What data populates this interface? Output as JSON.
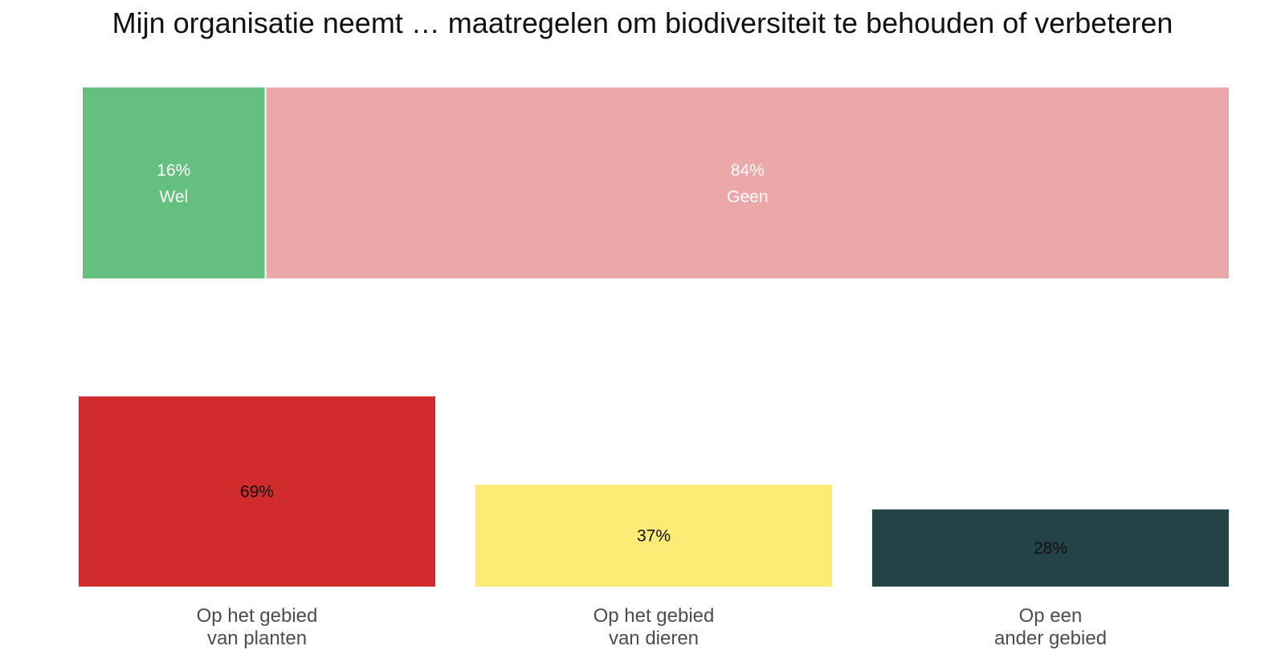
{
  "title": "Mijn organisatie neemt … maatregelen om biodiversiteit te behouden of verbeteren",
  "chart_data": [
    {
      "type": "bar",
      "orientation": "horizontal-stacked",
      "title": "",
      "categories": [
        "Wel",
        "Geen"
      ],
      "values": [
        16,
        84
      ],
      "value_labels": [
        "16%",
        "84%"
      ],
      "colors": [
        "#65bf7f",
        "#eca7a9"
      ],
      "label_color": "#ffffff",
      "xlim": [
        0,
        100
      ]
    },
    {
      "type": "bar",
      "orientation": "vertical",
      "title": "",
      "categories": [
        [
          "Op het gebied",
          "van planten"
        ],
        [
          "Op het gebied",
          "van dieren"
        ],
        [
          "Op een",
          "ander gebied"
        ]
      ],
      "values": [
        69,
        37,
        28
      ],
      "value_labels": [
        "69%",
        "37%",
        "28%"
      ],
      "colors": [
        "#d12b2b",
        "#feeb75",
        "#244347"
      ],
      "label_color": "#111111",
      "ylim": [
        0,
        69
      ],
      "grid": false,
      "legend": "none"
    }
  ]
}
